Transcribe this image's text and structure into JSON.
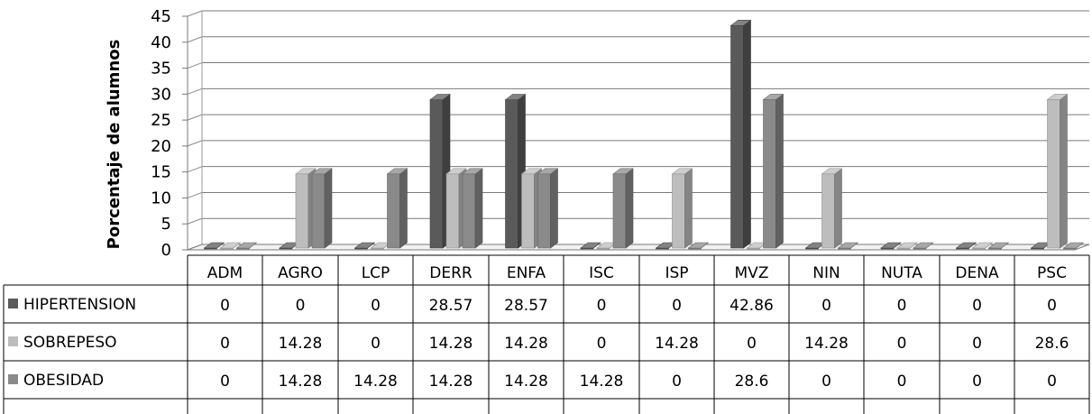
{
  "chart_data": {
    "type": "bar",
    "ylabel": "Porcentaje de alumnos",
    "ylim": [
      0,
      45
    ],
    "yticks": [
      0,
      5,
      10,
      15,
      20,
      25,
      30,
      35,
      40,
      45
    ],
    "grid": true,
    "categories": [
      "ADM",
      "AGRO",
      "LCP",
      "DERR",
      "ENFA",
      "ISC",
      "ISP",
      "MVZ",
      "NIN",
      "NUTA",
      "DENA",
      "PSC"
    ],
    "series": [
      {
        "name": "HIPERTENSION",
        "color": "#5a5a5a",
        "values": [
          0,
          0,
          0,
          28.57,
          28.57,
          0,
          0,
          42.86,
          0,
          0,
          0,
          0
        ],
        "labels": [
          "0",
          "0",
          "0",
          "28.57",
          "28.57",
          "0",
          "0",
          "42.86",
          "0",
          "0",
          "0",
          "0"
        ]
      },
      {
        "name": "SOBREPESO",
        "color": "#bdbdbd",
        "values": [
          0,
          14.28,
          0,
          14.28,
          14.28,
          0,
          14.28,
          0,
          14.28,
          0,
          0,
          28.6
        ],
        "labels": [
          "0",
          "14.28",
          "0",
          "14.28",
          "14.28",
          "0",
          "14.28",
          "0",
          "14.28",
          "0",
          "0",
          "28.6"
        ]
      },
      {
        "name": "OBESIDAD",
        "color": "#8a8a8a",
        "values": [
          0,
          14.28,
          14.28,
          14.28,
          14.28,
          14.28,
          0,
          28.6,
          0,
          0,
          0,
          0
        ],
        "labels": [
          "0",
          "14.28",
          "14.28",
          "14.28",
          "14.28",
          "14.28",
          "0",
          "28.6",
          "0",
          "0",
          "0",
          "0"
        ]
      }
    ]
  }
}
